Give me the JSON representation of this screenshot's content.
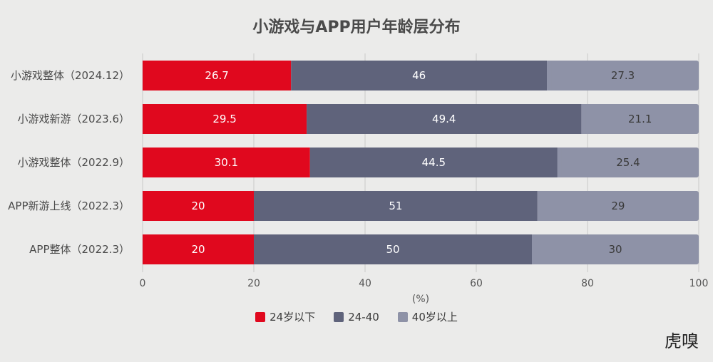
{
  "chart_data": {
    "type": "bar",
    "orientation": "horizontal",
    "stacked": true,
    "title": "小游戏与APP用户年龄层分布",
    "xlabel": "(%)",
    "ylabel": "",
    "xlim": [
      0,
      100
    ],
    "xticks": [
      0,
      20,
      40,
      60,
      80,
      100
    ],
    "grid": true,
    "legend_position": "bottom",
    "categories": [
      "小游戏整体（2024.12）",
      "小游戏新游（2023.6）",
      "小游戏整体（2022.9）",
      "APP新游上线（2022.3）",
      "APP整体（2022.3）"
    ],
    "series": [
      {
        "name": "24岁以下",
        "color": "#e0081e",
        "values": [
          26.7,
          29.5,
          30.1,
          20,
          20
        ]
      },
      {
        "name": "24-40",
        "color": "#5f637b",
        "values": [
          46,
          49.4,
          44.5,
          51,
          50
        ]
      },
      {
        "name": "40岁以上",
        "color": "#8e92a7",
        "values": [
          27.3,
          21.1,
          25.4,
          29,
          30
        ]
      }
    ]
  },
  "watermark": "虎嗅"
}
